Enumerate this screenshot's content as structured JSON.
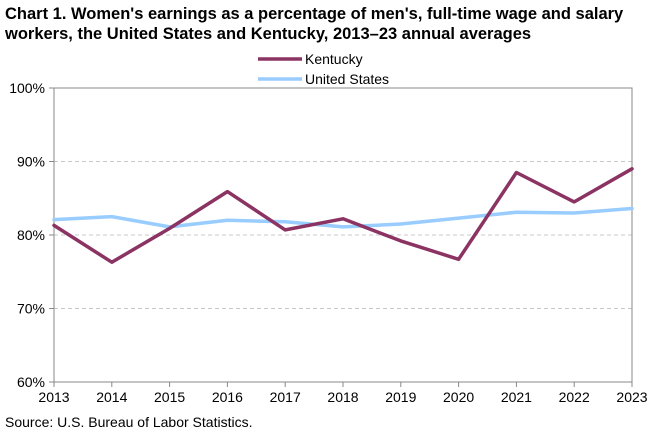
{
  "header": {
    "title": "Chart 1. Women's earnings as a percentage of men's, full-time wage and salary workers, the United States and Kentucky, 2013–23 annual averages"
  },
  "footer": {
    "source": "Source: U.S. Bureau of Labor Statistics."
  },
  "chart_data": {
    "type": "line",
    "title": "Chart 1. Women's earnings as a percentage of men's, full-time wage and salary workers, the United States and Kentucky, 2013–23 annual averages",
    "xlabel": "",
    "ylabel": "",
    "x": [
      "2013",
      "2014",
      "2015",
      "2016",
      "2017",
      "2018",
      "2019",
      "2020",
      "2021",
      "2022",
      "2023"
    ],
    "ylim": [
      60,
      100
    ],
    "yticks": [
      60,
      70,
      80,
      90,
      100
    ],
    "ytick_labels": [
      "60%",
      "70%",
      "80%",
      "90%",
      "100%"
    ],
    "grid": "horizontal dashed",
    "legend_position": "top-center",
    "series": [
      {
        "name": "Kentucky",
        "color": "#8b3362",
        "values": [
          81.3,
          76.3,
          80.9,
          85.9,
          80.7,
          82.2,
          79.2,
          76.7,
          88.5,
          84.5,
          89.0
        ]
      },
      {
        "name": "United States",
        "color": "#99ccff",
        "values": [
          82.1,
          82.5,
          81.1,
          82.0,
          81.8,
          81.1,
          81.5,
          82.3,
          83.1,
          83.0,
          83.6
        ]
      }
    ]
  }
}
